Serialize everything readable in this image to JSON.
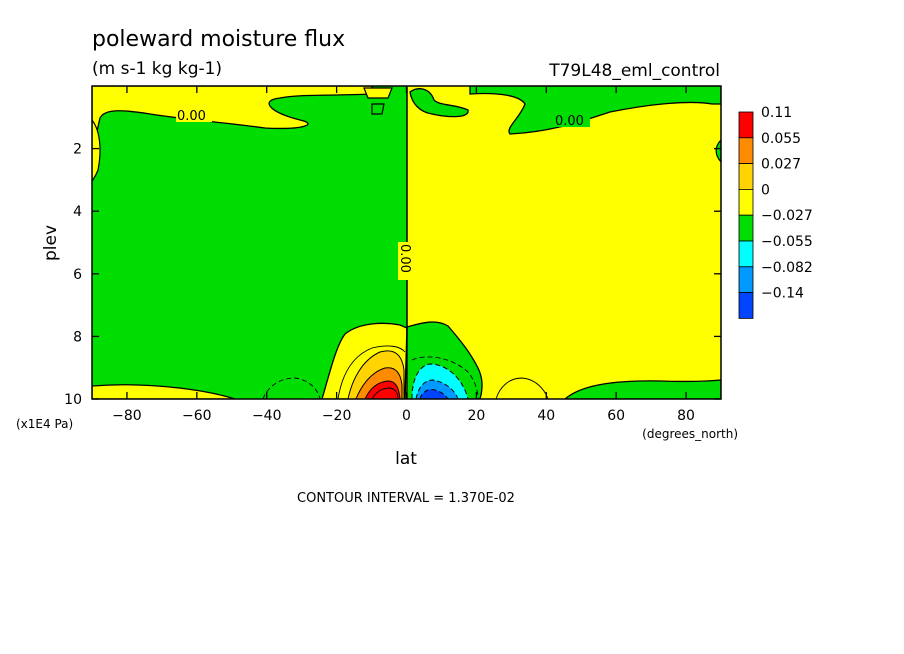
{
  "chart_data": {
    "type": "heatmap",
    "title": "poleward moisture flux",
    "subtitle": "(m s-1 kg kg-1)",
    "experiment": "T79L48_eml_control",
    "xlabel": "lat",
    "xunits": "(degrees_north)",
    "ylabel": "plev",
    "yunits": "(x1E4 Pa)",
    "xlim": [
      -90,
      90
    ],
    "ylim": [
      0,
      10
    ],
    "y_inverted": true,
    "xticks": [
      -80,
      -60,
      -40,
      -20,
      0,
      20,
      40,
      60,
      80
    ],
    "yticks": [
      2,
      4,
      6,
      8,
      10
    ],
    "footer": "CONTOUR INTERVAL = 1.370E-02",
    "legend_placement": "right",
    "legend": [
      {
        "label": "0.11",
        "color": "#ff0000"
      },
      {
        "label": "0.055",
        "color": "#ff8c00"
      },
      {
        "label": "0.027",
        "color": "#ffd400"
      },
      {
        "label": "0",
        "color": "#ffff00"
      },
      {
        "label": "−0.027",
        "color": "#00dd00"
      },
      {
        "label": "−0.055",
        "color": "#00ffff"
      },
      {
        "label": "−0.082",
        "color": "#0099ff"
      },
      {
        "label": "−0.14",
        "color": "#0044ff"
      }
    ],
    "legend_labels": [
      "0.11",
      "0.055",
      "0.027",
      "0",
      "−0.027",
      "−0.055",
      "−0.082",
      "−0.14"
    ],
    "contour_labels": [
      "0.00",
      "0.00",
      "0.00"
    ],
    "colors": {
      "positive": "#ffff00",
      "negative": "#00dd00",
      "pos_mid": "#ffd400",
      "pos_high": "#ff8c00",
      "pos_max": "#ff0000",
      "neg_mid": "#00ffff",
      "neg_high": "#0099ff",
      "neg_max": "#0044ff"
    }
  }
}
